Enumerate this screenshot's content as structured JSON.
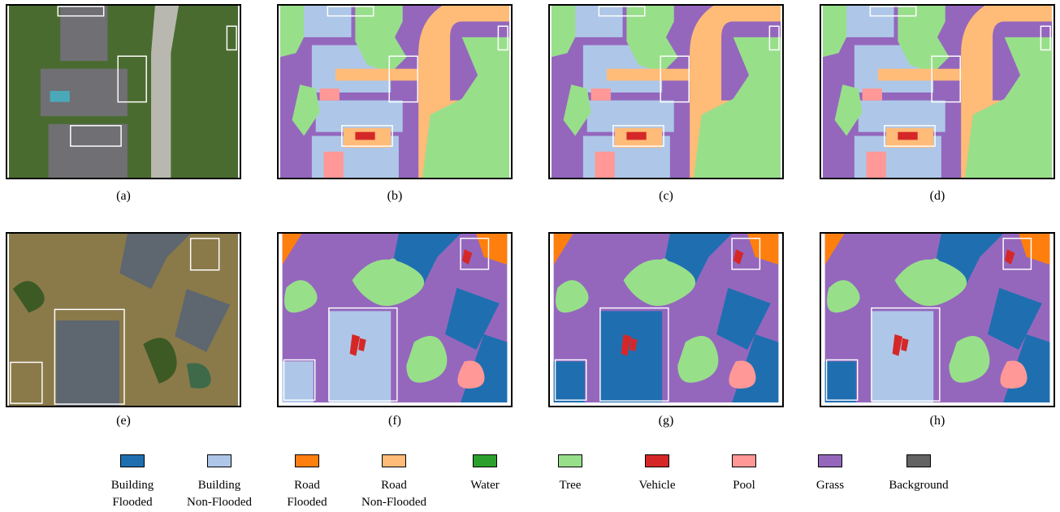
{
  "panels": [
    {
      "label": "(a)"
    },
    {
      "label": "(b)"
    },
    {
      "label": "(c)"
    },
    {
      "label": "(d)"
    },
    {
      "label": "(e)"
    },
    {
      "label": "(f)"
    },
    {
      "label": "(g)"
    },
    {
      "label": "(h)"
    }
  ],
  "legend": [
    {
      "lines": [
        "Building",
        "Flooded"
      ],
      "color": "#1f6fb0"
    },
    {
      "lines": [
        "Building",
        "Non-Flooded"
      ],
      "color": "#aec7e8"
    },
    {
      "lines": [
        "Road",
        "Flooded"
      ],
      "color": "#ff7f0e"
    },
    {
      "lines": [
        "Road",
        "Non-Flooded"
      ],
      "color": "#ffbb78"
    },
    {
      "lines": [
        "Water"
      ],
      "color": "#2ca02c"
    },
    {
      "lines": [
        "Tree"
      ],
      "color": "#98df8a"
    },
    {
      "lines": [
        "Vehicle"
      ],
      "color": "#d62728"
    },
    {
      "lines": [
        "Pool"
      ],
      "color": "#ff9896"
    },
    {
      "lines": [
        "Grass"
      ],
      "color": "#9467bd"
    },
    {
      "lines": [
        "Background"
      ],
      "color": "#636363"
    }
  ]
}
